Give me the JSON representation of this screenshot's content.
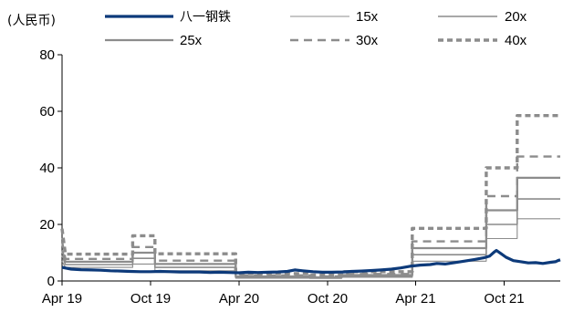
{
  "chart_data": {
    "type": "line",
    "unit_label": "(人民币)",
    "title": "",
    "xlabel": "",
    "ylabel": "",
    "ylim": [
      0,
      80
    ],
    "y_ticks": [
      "0",
      "20",
      "40",
      "60",
      "80"
    ],
    "x_ticks": [
      "Apr 19",
      "Oct 19",
      "Apr 20",
      "Oct 20",
      "Apr 21",
      "Oct 21"
    ],
    "x_start": "2019-04-01",
    "x_end": "2022-01-25",
    "x_tick_dates": [
      "2019-04-01",
      "2019-10-01",
      "2020-04-01",
      "2020-10-01",
      "2021-04-01",
      "2021-10-01"
    ],
    "grid": false,
    "legend": {
      "placement": "top",
      "columns": 3
    },
    "colors": {
      "price": "#0d3a7a",
      "band": "#8c8c8c",
      "axis": "#000000"
    },
    "series": [
      {
        "name": "八一钢铁",
        "style": "price",
        "points": [
          [
            "2019-04-01",
            4.8
          ],
          [
            "2019-04-20",
            4.2
          ],
          [
            "2019-05-10",
            4.0
          ],
          [
            "2019-06-01",
            3.9
          ],
          [
            "2019-06-20",
            3.8
          ],
          [
            "2019-07-10",
            3.6
          ],
          [
            "2019-08-01",
            3.5
          ],
          [
            "2019-08-20",
            3.4
          ],
          [
            "2019-09-10",
            3.3
          ],
          [
            "2019-10-01",
            3.3
          ],
          [
            "2019-10-20",
            3.4
          ],
          [
            "2019-11-10",
            3.3
          ],
          [
            "2019-12-01",
            3.2
          ],
          [
            "2019-12-20",
            3.2
          ],
          [
            "2020-01-10",
            3.2
          ],
          [
            "2020-02-01",
            3.0
          ],
          [
            "2020-02-20",
            3.1
          ],
          [
            "2020-03-10",
            3.0
          ],
          [
            "2020-04-01",
            2.9
          ],
          [
            "2020-04-20",
            3.1
          ],
          [
            "2020-05-10",
            3.0
          ],
          [
            "2020-06-01",
            3.1
          ],
          [
            "2020-06-20",
            3.2
          ],
          [
            "2020-07-10",
            3.4
          ],
          [
            "2020-07-25",
            3.9
          ],
          [
            "2020-08-10",
            3.6
          ],
          [
            "2020-09-01",
            3.3
          ],
          [
            "2020-09-20",
            3.1
          ],
          [
            "2020-10-10",
            3.1
          ],
          [
            "2020-11-01",
            3.2
          ],
          [
            "2020-11-20",
            3.4
          ],
          [
            "2020-12-10",
            3.5
          ],
          [
            "2021-01-01",
            3.7
          ],
          [
            "2021-01-20",
            3.9
          ],
          [
            "2021-02-10",
            4.2
          ],
          [
            "2021-03-01",
            4.6
          ],
          [
            "2021-03-20",
            5.2
          ],
          [
            "2021-04-10",
            5.6
          ],
          [
            "2021-05-01",
            5.8
          ],
          [
            "2021-05-15",
            6.2
          ],
          [
            "2021-06-01",
            6.0
          ],
          [
            "2021-06-20",
            6.5
          ],
          [
            "2021-07-10",
            7.0
          ],
          [
            "2021-08-01",
            7.6
          ],
          [
            "2021-08-20",
            8.2
          ],
          [
            "2021-09-01",
            8.8
          ],
          [
            "2021-09-10",
            10.2
          ],
          [
            "2021-09-15",
            10.8
          ],
          [
            "2021-09-25",
            9.6
          ],
          [
            "2021-10-05",
            8.4
          ],
          [
            "2021-10-20",
            7.2
          ],
          [
            "2021-11-05",
            6.8
          ],
          [
            "2021-11-20",
            6.4
          ],
          [
            "2021-12-05",
            6.5
          ],
          [
            "2021-12-20",
            6.2
          ],
          [
            "2022-01-05",
            6.6
          ],
          [
            "2022-01-15",
            6.8
          ],
          [
            "2022-01-20",
            7.2
          ],
          [
            "2022-01-25",
            7.5
          ]
        ]
      },
      {
        "name": "15x",
        "style": "thin",
        "points": [
          [
            "2019-04-01",
            7.0
          ],
          [
            "2019-04-08",
            4.8
          ],
          [
            "2019-08-25",
            4.8
          ],
          [
            "2019-08-25",
            6.0
          ],
          [
            "2019-10-10",
            6.0
          ],
          [
            "2019-10-10",
            3.6
          ],
          [
            "2020-03-25",
            3.6
          ],
          [
            "2020-03-25",
            1.0
          ],
          [
            "2020-08-25",
            1.0
          ],
          [
            "2020-08-25",
            0.9
          ],
          [
            "2020-10-30",
            0.9
          ],
          [
            "2020-10-30",
            1.3
          ],
          [
            "2021-03-25",
            1.3
          ],
          [
            "2021-03-25",
            7.0
          ],
          [
            "2021-08-25",
            7.0
          ],
          [
            "2021-08-25",
            15.0
          ],
          [
            "2021-10-28",
            15.0
          ],
          [
            "2021-10-28",
            22.0
          ],
          [
            "2022-01-25",
            22.0
          ]
        ]
      },
      {
        "name": "20x",
        "style": "thin2",
        "points": [
          [
            "2019-04-01",
            9.0
          ],
          [
            "2019-04-08",
            5.8
          ],
          [
            "2019-08-25",
            5.8
          ],
          [
            "2019-08-25",
            8.0
          ],
          [
            "2019-10-10",
            8.0
          ],
          [
            "2019-10-10",
            4.8
          ],
          [
            "2020-03-25",
            4.8
          ],
          [
            "2020-03-25",
            1.3
          ],
          [
            "2020-08-25",
            1.3
          ],
          [
            "2020-08-25",
            1.1
          ],
          [
            "2020-10-30",
            1.1
          ],
          [
            "2020-10-30",
            1.7
          ],
          [
            "2021-03-25",
            1.7
          ],
          [
            "2021-03-25",
            9.3
          ],
          [
            "2021-08-25",
            9.3
          ],
          [
            "2021-08-25",
            20.0
          ],
          [
            "2021-10-28",
            20.0
          ],
          [
            "2021-10-28",
            29.0
          ],
          [
            "2022-01-25",
            29.0
          ]
        ]
      },
      {
        "name": "25x",
        "style": "medium",
        "points": [
          [
            "2019-04-01",
            11.0
          ],
          [
            "2019-04-08",
            6.8
          ],
          [
            "2019-08-25",
            6.8
          ],
          [
            "2019-08-25",
            10.0
          ],
          [
            "2019-10-10",
            10.0
          ],
          [
            "2019-10-10",
            6.0
          ],
          [
            "2020-03-25",
            6.0
          ],
          [
            "2020-03-25",
            1.6
          ],
          [
            "2020-08-25",
            1.6
          ],
          [
            "2020-08-25",
            1.3
          ],
          [
            "2020-10-30",
            1.3
          ],
          [
            "2020-10-30",
            2.1
          ],
          [
            "2021-03-25",
            2.1
          ],
          [
            "2021-03-25",
            11.6
          ],
          [
            "2021-08-25",
            11.6
          ],
          [
            "2021-08-25",
            25.0
          ],
          [
            "2021-10-28",
            25.0
          ],
          [
            "2021-10-28",
            36.5
          ],
          [
            "2022-01-25",
            36.5
          ]
        ]
      },
      {
        "name": "30x",
        "style": "dash",
        "points": [
          [
            "2019-04-01",
            14.0
          ],
          [
            "2019-04-08",
            7.8
          ],
          [
            "2019-08-25",
            7.8
          ],
          [
            "2019-08-25",
            12.0
          ],
          [
            "2019-10-10",
            12.0
          ],
          [
            "2019-10-10",
            7.2
          ],
          [
            "2020-03-25",
            7.2
          ],
          [
            "2020-03-25",
            2.0
          ],
          [
            "2020-08-25",
            2.0
          ],
          [
            "2020-08-25",
            1.6
          ],
          [
            "2020-10-30",
            1.6
          ],
          [
            "2020-10-30",
            2.5
          ],
          [
            "2021-03-25",
            2.5
          ],
          [
            "2021-03-25",
            14.0
          ],
          [
            "2021-08-25",
            14.0
          ],
          [
            "2021-08-25",
            30.0
          ],
          [
            "2021-10-28",
            30.0
          ],
          [
            "2021-10-28",
            44.0
          ],
          [
            "2022-01-25",
            44.0
          ]
        ]
      },
      {
        "name": "40x",
        "style": "dash-bold",
        "points": [
          [
            "2019-04-01",
            18.5
          ],
          [
            "2019-04-08",
            9.5
          ],
          [
            "2019-08-25",
            9.5
          ],
          [
            "2019-08-25",
            16.0
          ],
          [
            "2019-10-10",
            16.0
          ],
          [
            "2019-10-10",
            9.6
          ],
          [
            "2020-03-25",
            9.6
          ],
          [
            "2020-03-25",
            2.6
          ],
          [
            "2020-08-25",
            2.6
          ],
          [
            "2020-08-25",
            2.1
          ],
          [
            "2020-10-30",
            2.1
          ],
          [
            "2020-10-30",
            3.3
          ],
          [
            "2021-03-25",
            3.3
          ],
          [
            "2021-03-25",
            18.6
          ],
          [
            "2021-08-25",
            18.6
          ],
          [
            "2021-08-25",
            40.0
          ],
          [
            "2021-10-28",
            40.0
          ],
          [
            "2021-10-28",
            58.5
          ],
          [
            "2022-01-25",
            58.5
          ]
        ]
      }
    ]
  }
}
